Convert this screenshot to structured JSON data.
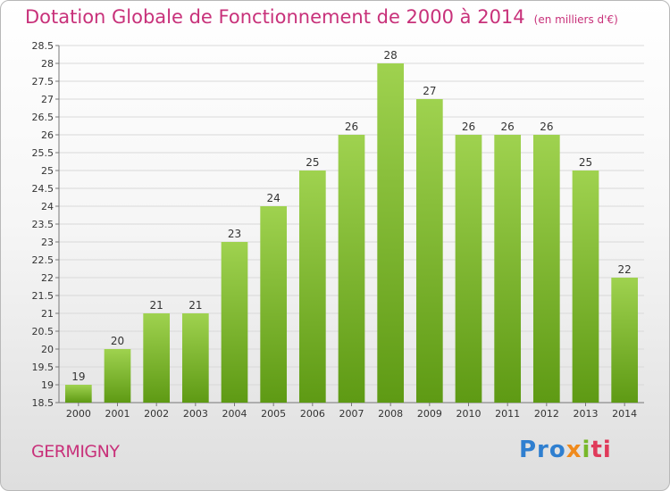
{
  "header": {
    "title": "Dotation Globale de Fonctionnement de 2000 à 2014",
    "subtitle": "(en milliers d'€)"
  },
  "location": "GERMIGNY",
  "logo": {
    "text": "Proxiti",
    "parts": [
      "Pro",
      "x",
      "i",
      "ti"
    ]
  },
  "colors": {
    "bar_top": "#9fd24f",
    "bar_bottom": "#5e9a14",
    "title": "#c8317a"
  },
  "chart_data": {
    "type": "bar",
    "title": "Dotation Globale de Fonctionnement de 2000 à 2014",
    "subtitle": "(en milliers d'€)",
    "categories": [
      "2000",
      "2001",
      "2002",
      "2003",
      "2004",
      "2005",
      "2006",
      "2007",
      "2008",
      "2009",
      "2010",
      "2011",
      "2012",
      "2013",
      "2014"
    ],
    "values": [
      19,
      20,
      21,
      21,
      23,
      24,
      25,
      26,
      28,
      27,
      26,
      26,
      26,
      25,
      22
    ],
    "data_labels": [
      "19",
      "20",
      "21",
      "21",
      "23",
      "24",
      "25",
      "26",
      "28",
      "27",
      "26",
      "26",
      "26",
      "25",
      "22"
    ],
    "ylim": [
      18.5,
      28.5
    ],
    "yticks": [
      "18.5",
      "19",
      "19.5",
      "20",
      "20.5",
      "21",
      "21.5",
      "22",
      "22.5",
      "23",
      "23.5",
      "24",
      "24.5",
      "25",
      "25.5",
      "26",
      "26.5",
      "27",
      "27.5",
      "28",
      "28.5"
    ],
    "grid": true,
    "legend": "none"
  }
}
